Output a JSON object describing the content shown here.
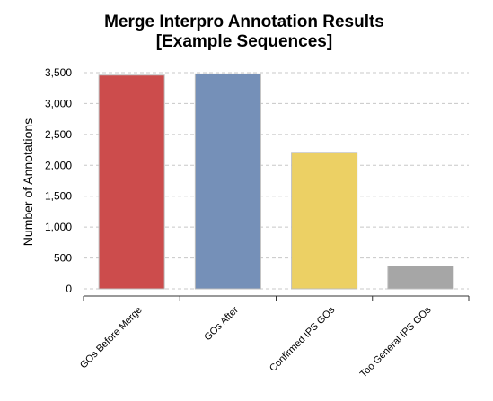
{
  "chart_data": {
    "type": "bar",
    "title_lines": [
      "Merge Interpro Annotation Results",
      "[Example Sequences]"
    ],
    "xlabel": "",
    "ylabel": "Number of Annotations",
    "categories": [
      "GOs Before Merge",
      "GOs After",
      "Confirmed IPS GOs",
      "Too General IPS GOs"
    ],
    "values": [
      3460,
      3480,
      2210,
      370
    ],
    "bar_colors": [
      "#cc4c4c",
      "#7590b8",
      "#ecd064",
      "#a6a6a6"
    ],
    "ylim": [
      0,
      3500
    ],
    "yticks": [
      0,
      500,
      1000,
      1500,
      2000,
      2500,
      3000,
      3500
    ],
    "ytick_labels": [
      "0",
      "500",
      "1,000",
      "1,500",
      "2,000",
      "2,500",
      "3,000",
      "3,500"
    ],
    "grid": true,
    "legend": "none"
  }
}
